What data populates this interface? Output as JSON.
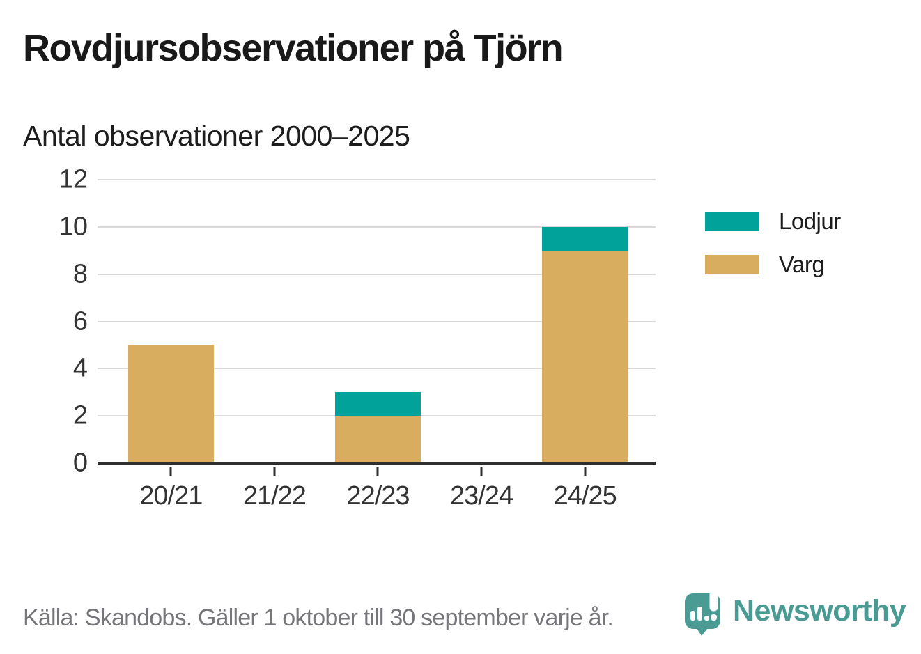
{
  "header": {
    "title": "Rovdjursobservationer på Tjörn",
    "subtitle": "Antal observationer 2000–2025"
  },
  "chart_data": {
    "type": "bar",
    "stacked": true,
    "categories": [
      "20/21",
      "21/22",
      "22/23",
      "23/24",
      "24/25"
    ],
    "series": [
      {
        "name": "Varg",
        "color": "#d9ad5f",
        "values": [
          5,
          0,
          2,
          0,
          9
        ]
      },
      {
        "name": "Lodjur",
        "color": "#00a29a",
        "values": [
          0,
          0,
          1,
          0,
          1
        ]
      }
    ],
    "totals": [
      5,
      0,
      3,
      0,
      10
    ],
    "title": "Rovdjursobservationer på Tjörn",
    "subtitle": "Antal observationer 2000–2025",
    "xlabel": "",
    "ylabel": "",
    "ylim": [
      0,
      12
    ],
    "yticks": [
      0,
      2,
      4,
      6,
      8,
      10,
      12
    ],
    "grid": true,
    "legend_position": "right",
    "legend_order": [
      "Lodjur",
      "Varg"
    ]
  },
  "footer": {
    "source_text": "Källa: Skandobs. Gäller 1 oktober till 30 september varje år."
  },
  "branding": {
    "name": "Newsworthy",
    "color": "#4a9b94",
    "logo_icon": "newsworthy-speech-bubble-chart-icon"
  }
}
